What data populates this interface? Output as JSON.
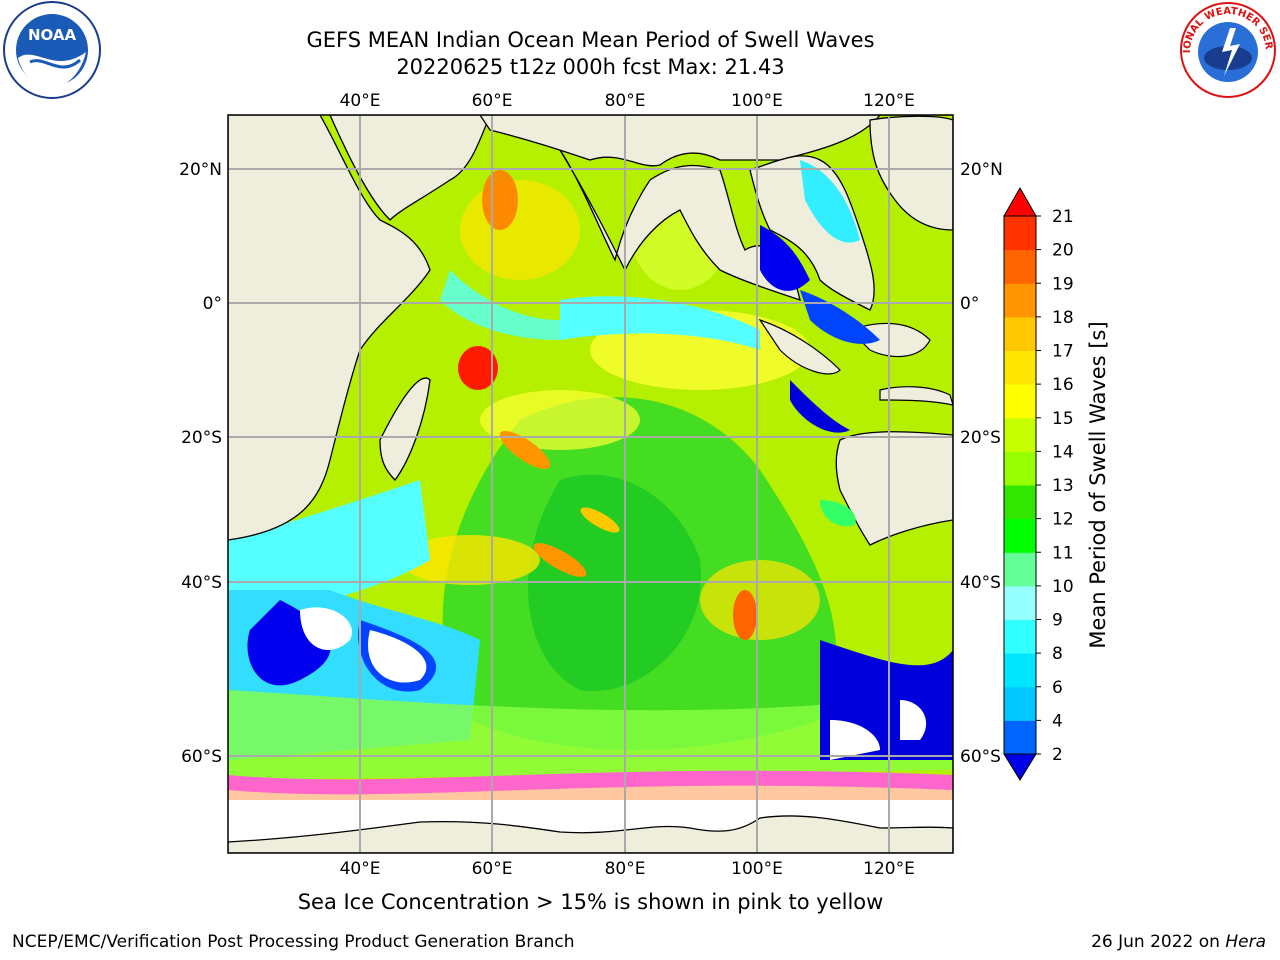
{
  "title": {
    "line1": "GEFS MEAN Indian Ocean Mean Period of Swell Waves",
    "line2": "20220625 t12z 000h fcst   Max: 21.43"
  },
  "map": {
    "lon_ticks": [
      "40°E",
      "60°E",
      "80°E",
      "100°E",
      "120°E"
    ],
    "lat_ticks": [
      "20°N",
      "0°",
      "20°S",
      "40°S",
      "60°S"
    ],
    "extent": {
      "lon": [
        20,
        130
      ],
      "lat": [
        -72,
        28
      ]
    },
    "land_color": "#efeedd",
    "ice_note": "Sea Ice Concentration > 15% is shown in pink to yellow"
  },
  "colorbar": {
    "label": "Mean Period of Swell Waves [s]",
    "levels": [
      "2",
      "4",
      "6",
      "8",
      "9",
      "10",
      "11",
      "12",
      "13",
      "14",
      "15",
      "16",
      "17",
      "18",
      "19",
      "20",
      "21"
    ],
    "colors": [
      "#0000e6",
      "#0064ff",
      "#00c8ff",
      "#00e6ff",
      "#32ffff",
      "#96ffff",
      "#64ff96",
      "#00ff00",
      "#32e600",
      "#96ff00",
      "#c8ff00",
      "#ffff00",
      "#ffe600",
      "#ffc800",
      "#ff9600",
      "#ff6400",
      "#ff3200",
      "#ff0000"
    ]
  },
  "footer": {
    "left": "NCEP/EMC/Verification Post Processing Product Generation Branch",
    "date": "26 Jun 2022 on",
    "machine": "Hera"
  },
  "logos": {
    "noaa": "NOAA",
    "nws": "NATIONAL WEATHER SERVICE"
  }
}
